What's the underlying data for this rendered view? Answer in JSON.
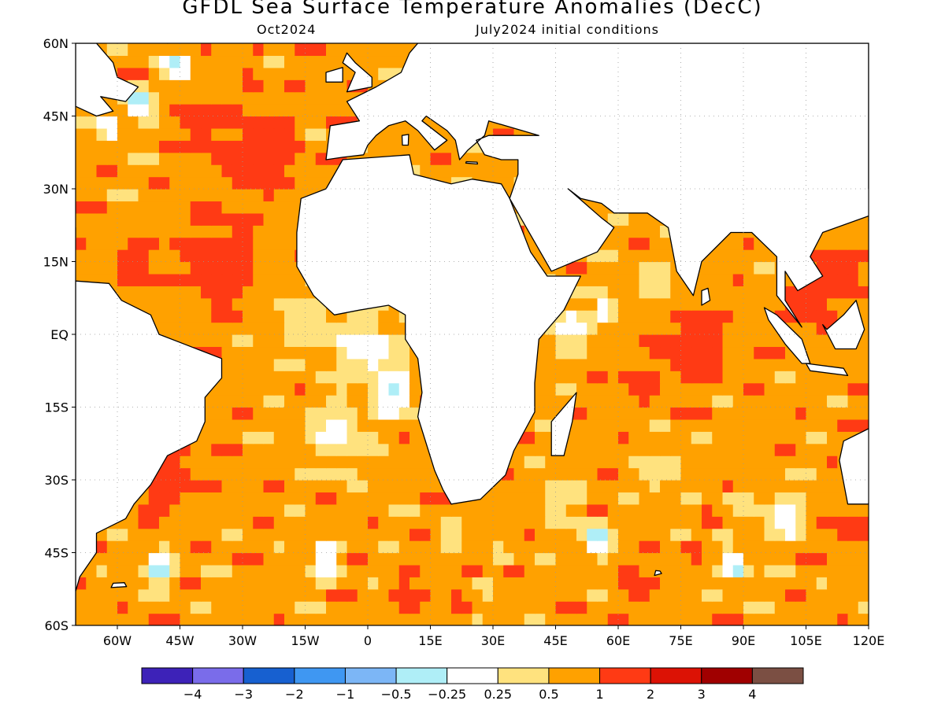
{
  "title": "GFDL Sea Surface Temperature Anomalies (DecC)",
  "subtitle_left": "Oct2024",
  "subtitle_right": "July2024 initial conditions",
  "map": {
    "lon_range": [
      -70,
      120
    ],
    "lat_range": [
      -60,
      60
    ],
    "lat_labels": [
      {
        "lat": 60,
        "text": "60N"
      },
      {
        "lat": 45,
        "text": "45N"
      },
      {
        "lat": 30,
        "text": "30N"
      },
      {
        "lat": 15,
        "text": "15N"
      },
      {
        "lat": 0,
        "text": "EQ"
      },
      {
        "lat": -15,
        "text": "15S"
      },
      {
        "lat": -30,
        "text": "30S"
      },
      {
        "lat": -45,
        "text": "45S"
      },
      {
        "lat": -60,
        "text": "60S"
      }
    ],
    "lon_labels": [
      {
        "lon": -60,
        "text": "60W"
      },
      {
        "lon": -45,
        "text": "45W"
      },
      {
        "lon": -30,
        "text": "30W"
      },
      {
        "lon": -15,
        "text": "15W"
      },
      {
        "lon": 0,
        "text": "0"
      },
      {
        "lon": 15,
        "text": "15E"
      },
      {
        "lon": 30,
        "text": "30E"
      },
      {
        "lon": 45,
        "text": "45E"
      },
      {
        "lon": 60,
        "text": "60E"
      },
      {
        "lon": 75,
        "text": "75E"
      },
      {
        "lon": 90,
        "text": "90E"
      },
      {
        "lon": 105,
        "text": "105E"
      },
      {
        "lon": 120,
        "text": "120E"
      }
    ],
    "grid": true,
    "field": {
      "base_anomaly": 0.75,
      "features": [
        {
          "lon": -25,
          "lat": 37,
          "r": 9,
          "v": 1.3
        },
        {
          "lon": -40,
          "lat": 44,
          "r": 6,
          "v": 1.2
        },
        {
          "lon": -35,
          "lat": 15,
          "r": 10,
          "v": 1.3
        },
        {
          "lon": -55,
          "lat": 15,
          "r": 6,
          "v": 1.2
        },
        {
          "lon": -55,
          "lat": 48,
          "r": 3,
          "v": -0.6
        },
        {
          "lon": -45,
          "lat": 55,
          "r": 3,
          "v": -0.6
        },
        {
          "lon": -62,
          "lat": 43,
          "r": 2.5,
          "v": -0.35
        },
        {
          "lon": -15,
          "lat": 2,
          "r": 9,
          "v": 0.35
        },
        {
          "lon": 0,
          "lat": -3,
          "r": 8,
          "v": 0.1
        },
        {
          "lon": 6,
          "lat": -12,
          "r": 4,
          "v": -0.35
        },
        {
          "lon": -8,
          "lat": -20,
          "r": 7,
          "v": 0.15
        },
        {
          "lon": -48,
          "lat": -30,
          "r": 7,
          "v": 1.3
        },
        {
          "lon": -50,
          "lat": -48,
          "r": 3.5,
          "v": -0.55
        },
        {
          "lon": -10,
          "lat": -46,
          "r": 3.5,
          "v": -0.4
        },
        {
          "lon": 20,
          "lat": -42,
          "r": 3,
          "v": 0.15
        },
        {
          "lon": 55,
          "lat": -42,
          "r": 3,
          "v": -0.7
        },
        {
          "lon": 45,
          "lat": -34,
          "r": 6,
          "v": 0.35
        },
        {
          "lon": 88,
          "lat": -48,
          "r": 3,
          "v": -0.4
        },
        {
          "lon": 78,
          "lat": -3,
          "r": 9,
          "v": 1.3
        },
        {
          "lon": 65,
          "lat": -10,
          "r": 4,
          "v": 1.3
        },
        {
          "lon": 48,
          "lat": 2,
          "r": 6,
          "v": 0.15
        },
        {
          "lon": 57,
          "lat": 5,
          "r": 2,
          "v": -0.35
        },
        {
          "lon": 68,
          "lat": 10,
          "r": 6,
          "v": 0.35
        },
        {
          "lon": 112,
          "lat": 12,
          "r": 7,
          "v": 1.3
        },
        {
          "lon": 105,
          "lat": 5,
          "r": 5,
          "v": 1.2
        },
        {
          "lon": 85,
          "lat": 15,
          "r": 5,
          "v": 0.7
        },
        {
          "lon": 10,
          "lat": -55,
          "r": 6,
          "v": 1.1
        },
        {
          "lon": 65,
          "lat": -52,
          "r": 6,
          "v": 1.1
        },
        {
          "lon": 100,
          "lat": -38,
          "r": 6,
          "v": 0.15
        },
        {
          "lon": 95,
          "lat": -20,
          "r": 6,
          "v": 0.9
        },
        {
          "lon": 115,
          "lat": -40,
          "r": 4,
          "v": 1.2
        },
        {
          "lon": 70,
          "lat": -28,
          "r": 6,
          "v": 0.3
        }
      ]
    }
  },
  "colorbar": {
    "colors": [
      "#3d22b8",
      "#7a6cea",
      "#1760d0",
      "#3f97f2",
      "#7cb6f6",
      "#afeef7",
      "#ffffff",
      "#ffe27e",
      "#ffa100",
      "#ff3a14",
      "#dc1205",
      "#a00000",
      "#7b4f43"
    ],
    "labels": [
      "−4",
      "−3",
      "−2",
      "−1",
      "−0.5",
      "−0.25",
      "0.25",
      "0.5",
      "1",
      "2",
      "3",
      "4"
    ],
    "thresholds": [
      -4,
      -3,
      -2,
      -1,
      -0.5,
      -0.25,
      0.25,
      0.5,
      1,
      2,
      3,
      4
    ]
  }
}
